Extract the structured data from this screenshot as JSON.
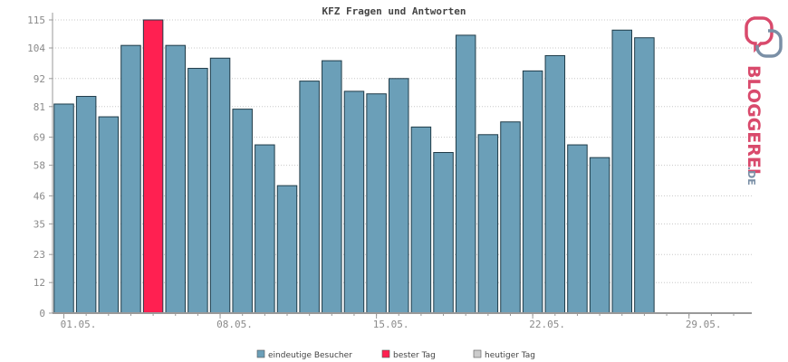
{
  "chart_data": {
    "type": "bar",
    "title": "KFZ Fragen und Antworten",
    "ylim": [
      0,
      115
    ],
    "y_ticks": [
      0,
      12,
      23,
      35,
      46,
      58,
      69,
      81,
      92,
      104,
      115
    ],
    "x_tick_labels": [
      {
        "index": 0,
        "label": "01.05."
      },
      {
        "index": 7,
        "label": "08.05."
      },
      {
        "index": 14,
        "label": "15.05."
      },
      {
        "index": 21,
        "label": "22.05."
      },
      {
        "index": 28,
        "label": "29.05."
      }
    ],
    "num_days": 31,
    "values": [
      82,
      85,
      77,
      105,
      115,
      105,
      96,
      100,
      80,
      66,
      50,
      91,
      99,
      87,
      86,
      92,
      73,
      63,
      109,
      70,
      75,
      95,
      101,
      66,
      61,
      111,
      108
    ],
    "best_index": 4,
    "grid": true,
    "legend": [
      {
        "label": "eindeutige Besucher",
        "color": "#6b9fb8"
      },
      {
        "label": "bester Tag",
        "color": "#ff2051"
      },
      {
        "label": "heutiger Tag",
        "color": "#cccccc"
      }
    ],
    "colors": {
      "bar": "#6b9fb8",
      "best": "#ff2051",
      "outline": "#1f3b48",
      "grid": "#c8c8c8",
      "axis": "#999999"
    }
  },
  "logo": {
    "text": "BLOGGEREI",
    "suffix": ".DE"
  }
}
